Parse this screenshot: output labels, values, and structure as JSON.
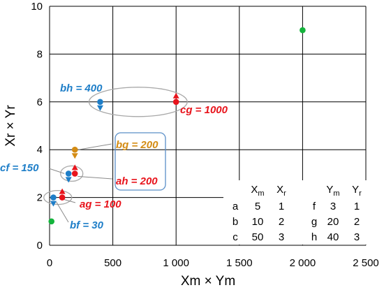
{
  "chart_data": {
    "type": "scatter",
    "xlabel": "Xm × Ym",
    "ylabel": "Xr × Yr",
    "xlim": [
      0,
      2500
    ],
    "ylim": [
      0,
      10
    ],
    "xticks": [
      0,
      500,
      1000,
      1500,
      2000,
      2500
    ],
    "xtick_labels": [
      "0",
      "500",
      "1 000",
      "1 500",
      "2 000",
      "2 500"
    ],
    "yticks": [
      0,
      2,
      4,
      6,
      8,
      10
    ],
    "ytick_labels": [
      "0",
      "2",
      "4",
      "6",
      "8",
      "10"
    ],
    "grid": true,
    "colors": {
      "red": "#e8141c",
      "blue": "#1e7ec8",
      "orange": "#d48c14",
      "green": "#14b43c"
    },
    "points": [
      {
        "id": "af",
        "x": 15,
        "y": 1,
        "color": "green"
      },
      {
        "id": "bf",
        "x": 30,
        "y": 2,
        "color": "blue",
        "arrow": "down"
      },
      {
        "id": "ag",
        "x": 100,
        "y": 2,
        "color": "red",
        "arrow": "up"
      },
      {
        "id": "cf",
        "x": 150,
        "y": 3,
        "color": "blue",
        "arrow": "down"
      },
      {
        "id": "ah",
        "x": 200,
        "y": 3,
        "color": "red",
        "arrow": "up"
      },
      {
        "id": "bg",
        "x": 200,
        "y": 4,
        "color": "orange",
        "arrow": "down"
      },
      {
        "id": "bh",
        "x": 400,
        "y": 6,
        "color": "blue",
        "arrow": "down"
      },
      {
        "id": "cg",
        "x": 1000,
        "y": 6,
        "color": "red",
        "arrow": "up"
      },
      {
        "id": "ch",
        "x": 2000,
        "y": 9,
        "color": "green"
      }
    ],
    "labels": [
      {
        "text": "bh = 400",
        "color": "blue"
      },
      {
        "text": "cg = 1000",
        "color": "red"
      },
      {
        "text": "bg = 200",
        "color": "orange"
      },
      {
        "text": "cf = 150",
        "color": "blue"
      },
      {
        "text": "ah = 200",
        "color": "red"
      },
      {
        "text": "ag = 100",
        "color": "red"
      },
      {
        "text": "bf = 30",
        "color": "blue"
      }
    ],
    "table": {
      "headers": {
        "xm": "X",
        "xm_sub": "m",
        "xr": "X",
        "xr_sub": "r",
        "ym": "Y",
        "ym_sub": "m",
        "yr": "Y",
        "yr_sub": "r"
      },
      "rows": [
        [
          "a",
          "5",
          "1",
          "f",
          "3",
          "1"
        ],
        [
          "b",
          "10",
          "2",
          "g",
          "20",
          "2"
        ],
        [
          "c",
          "50",
          "3",
          "h",
          "40",
          "3"
        ]
      ]
    }
  }
}
